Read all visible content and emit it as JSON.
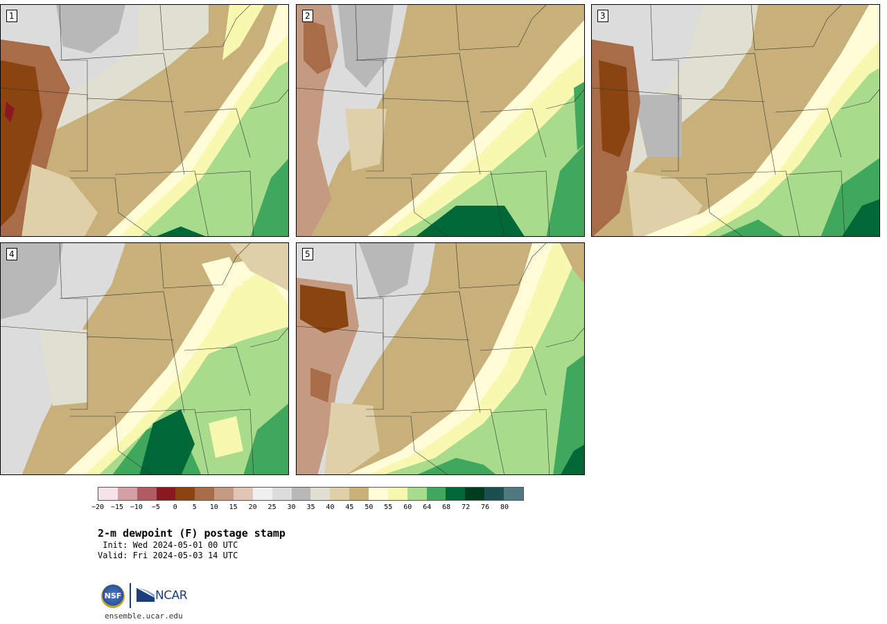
{
  "panels": [
    {
      "label": "1"
    },
    {
      "label": "2"
    },
    {
      "label": "3"
    },
    {
      "label": "4"
    },
    {
      "label": "5"
    }
  ],
  "colorbar": {
    "colors": [
      "#f4e4e6",
      "#d4a0a6",
      "#b05c64",
      "#8a1820",
      "#8a4410",
      "#a86c48",
      "#c49a80",
      "#e0c4b4",
      "#f0f0f0",
      "#dcdcdc",
      "#b8b8b8",
      "#e0e0d0",
      "#e0d0a8",
      "#c8b07a",
      "#fffcd8",
      "#f8f8b0",
      "#a8dc8c",
      "#40a85c",
      "#006838",
      "#003c20",
      "#1c5050",
      "#507880"
    ],
    "ticks": [
      "−20",
      "−15",
      "−10",
      "−5",
      "0",
      "5",
      "10",
      "15",
      "20",
      "25",
      "30",
      "35",
      "40",
      "45",
      "50",
      "55",
      "60",
      "64",
      "68",
      "72",
      "76",
      "80"
    ]
  },
  "title": "2-m dewpoint (F) postage stamp",
  "init": " Init: Wed 2024-05-01 00 UTC",
  "valid": "Valid: Fri 2024-05-03 14 UTC",
  "logos": {
    "nsf": "NSF",
    "ncar": "NCAR"
  },
  "website": "ensemble.ucar.edu"
}
